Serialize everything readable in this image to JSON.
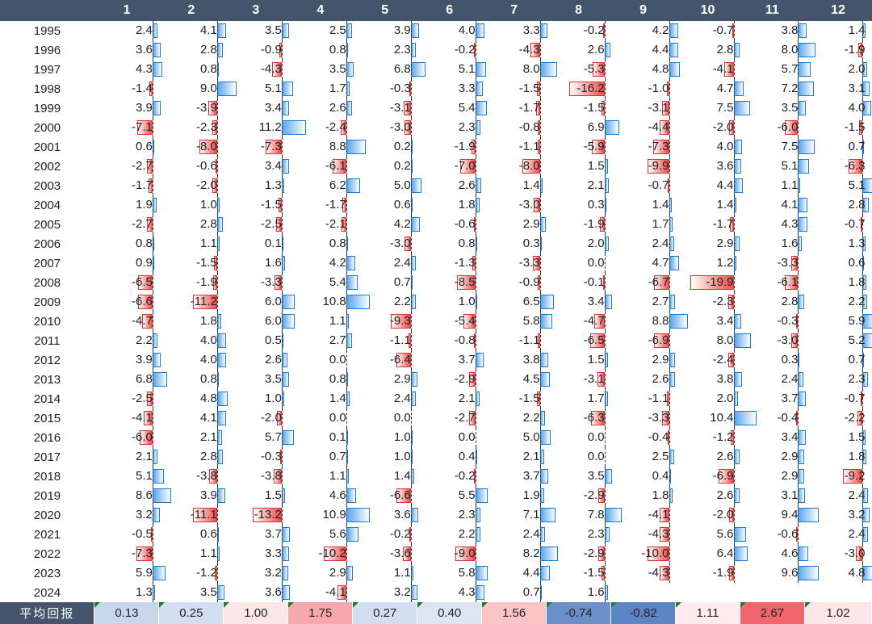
{
  "header": {
    "year_col_label": "",
    "months": [
      "1",
      "2",
      "3",
      "4",
      "5",
      "6",
      "7",
      "8",
      "9",
      "10",
      "11",
      "12"
    ]
  },
  "colors": {
    "header_bg": "#44546a",
    "positive_bar": "#5aa6ee",
    "negative_bar": "#f04a4a"
  },
  "rows": [
    {
      "year": "1995",
      "values": [
        "2.4",
        "4.1",
        "3.5",
        "2.5",
        "3.9",
        "4.0",
        "3.3",
        "-0.2",
        "4.2",
        "-0.7",
        "3.8",
        "1.4"
      ]
    },
    {
      "year": "1996",
      "values": [
        "3.6",
        "2.8",
        "-0.9",
        "0.8",
        "2.3",
        "-0.2",
        "-4.3",
        "2.6",
        "4.4",
        "2.8",
        "8.0",
        "-1.9"
      ]
    },
    {
      "year": "1997",
      "values": [
        "4.3",
        "0.8",
        "-4.3",
        "3.5",
        "6.8",
        "5.1",
        "8.0",
        "-5.3",
        "4.8",
        "-4.1",
        "5.7",
        "2.0"
      ]
    },
    {
      "year": "1998",
      "values": [
        "-1.4",
        "9.0",
        "5.1",
        "1.7",
        "-0.3",
        "3.3",
        "-1.5",
        "-16.2",
        "-1.0",
        "4.7",
        "7.2",
        "3.1"
      ]
    },
    {
      "year": "1999",
      "values": [
        "3.9",
        "-3.9",
        "3.4",
        "2.6",
        "-3.1",
        "5.4",
        "-1.7",
        "-1.5",
        "-3.1",
        "7.5",
        "3.5",
        "4.0"
      ]
    },
    {
      "year": "2000",
      "values": [
        "-7.1",
        "-2.3",
        "11.2",
        "-2.4",
        "-3.0",
        "2.3",
        "-0.8",
        "6.9",
        "-4.4",
        "-2.0",
        "-6.0",
        "-1.5"
      ]
    },
    {
      "year": "2001",
      "values": [
        "0.6",
        "-8.0",
        "-7.3",
        "8.8",
        "0.2",
        "-1.9",
        "-1.1",
        "-5.9",
        "-7.3",
        "4.0",
        "7.5",
        "0.7"
      ]
    },
    {
      "year": "2002",
      "values": [
        "-2.7",
        "-0.6",
        "3.4",
        "-6.1",
        "0.2",
        "-7.0",
        "-8.0",
        "1.5",
        "-9.9",
        "3.6",
        "5.1",
        "-6.3"
      ]
    },
    {
      "year": "2003",
      "values": [
        "-1.7",
        "-2.0",
        "1.3",
        "6.2",
        "5.0",
        "2.6",
        "1.4",
        "2.1",
        "-0.7",
        "4.4",
        "1.1",
        "5.1"
      ]
    },
    {
      "year": "2004",
      "values": [
        "1.9",
        "1.0",
        "-1.5",
        "-1.7",
        "0.6",
        "1.8",
        "-3.0",
        "0.3",
        "1.4",
        "1.4",
        "4.1",
        "2.8"
      ]
    },
    {
      "year": "2005",
      "values": [
        "-2.7",
        "2.8",
        "-2.5",
        "-2.1",
        "4.2",
        "-0.6",
        "2.9",
        "-1.9",
        "1.7",
        "-1.7",
        "4.3",
        "-0.7"
      ]
    },
    {
      "year": "2006",
      "values": [
        "0.8",
        "1.1",
        "0.1",
        "0.8",
        "-3.0",
        "0.8",
        "0.3",
        "2.0",
        "2.4",
        "2.9",
        "1.6",
        "1.3"
      ]
    },
    {
      "year": "2007",
      "values": [
        "0.9",
        "-1.5",
        "1.6",
        "4.2",
        "2.4",
        "-1.3",
        "-3.3",
        "0.0",
        "4.7",
        "1.2",
        "-3.3",
        "0.6"
      ]
    },
    {
      "year": "2008",
      "values": [
        "-6.5",
        "-1.9",
        "-3.3",
        "5.4",
        "0.7",
        "-8.5",
        "-0.9",
        "-0.1",
        "-6.7",
        "-19.9",
        "-6.1",
        "1.8"
      ]
    },
    {
      "year": "2009",
      "values": [
        "-6.6",
        "-11.2",
        "6.0",
        "10.8",
        "2.2",
        "1.0",
        "6.5",
        "3.4",
        "2.7",
        "-2.3",
        "2.8",
        "2.2"
      ]
    },
    {
      "year": "2010",
      "values": [
        "-4.7",
        "1.8",
        "6.0",
        "1.1",
        "-9.3",
        "-5.4",
        "5.8",
        "-4.7",
        "8.8",
        "3.4",
        "-0.3",
        "5.9"
      ]
    },
    {
      "year": "2011",
      "values": [
        "2.2",
        "4.0",
        "0.5",
        "2.7",
        "-1.1",
        "-0.8",
        "-1.1",
        "-6.5",
        "-6.9",
        "8.0",
        "-3.0",
        "5.2"
      ]
    },
    {
      "year": "2012",
      "values": [
        "3.9",
        "4.0",
        "2.6",
        "0.0",
        "-6.4",
        "3.7",
        "3.8",
        "1.5",
        "2.9",
        "-2.4",
        "0.3",
        "0.7"
      ]
    },
    {
      "year": "2013",
      "values": [
        "6.8",
        "0.8",
        "3.5",
        "0.8",
        "2.9",
        "-2.9",
        "4.5",
        "-3.1",
        "2.6",
        "3.8",
        "2.4",
        "2.3"
      ]
    },
    {
      "year": "2014",
      "values": [
        "-2.5",
        "4.8",
        "1.0",
        "1.4",
        "2.4",
        "2.1",
        "-1.5",
        "1.7",
        "-1.1",
        "2.0",
        "3.7",
        "-0.7"
      ]
    },
    {
      "year": "2015",
      "values": [
        "-4.1",
        "4.1",
        "-2.0",
        "0.0",
        "0.0",
        "-2.7",
        "2.2",
        "-6.3",
        "-3.3",
        "10.4",
        "-0.4",
        "-2.2"
      ]
    },
    {
      "year": "2016",
      "values": [
        "-6.0",
        "2.1",
        "5.7",
        "0.1",
        "1.0",
        "0.0",
        "5.0",
        "0.0",
        "-0.4",
        "-1.2",
        "3.4",
        "1.5"
      ]
    },
    {
      "year": "2017",
      "values": [
        "2.1",
        "2.8",
        "-0.3",
        "0.7",
        "1.0",
        "0.4",
        "2.1",
        "0.0",
        "2.5",
        "2.6",
        "2.9",
        "1.8"
      ]
    },
    {
      "year": "2018",
      "values": [
        "5.1",
        "-3.8",
        "-3.8",
        "1.1",
        "1.4",
        "-0.2",
        "3.7",
        "3.5",
        "0.4",
        "-6.9",
        "2.9",
        "-9.2"
      ]
    },
    {
      "year": "2019",
      "values": [
        "8.6",
        "3.9",
        "1.5",
        "4.6",
        "-6.6",
        "5.5",
        "1.9",
        "-2.9",
        "1.8",
        "2.6",
        "3.1",
        "2.4"
      ]
    },
    {
      "year": "2020",
      "values": [
        "3.2",
        "-11.1",
        "-13.2",
        "10.9",
        "3.6",
        "2.3",
        "7.1",
        "7.8",
        "-4.1",
        "-2.0",
        "9.4",
        "3.2"
      ]
    },
    {
      "year": "2021",
      "values": [
        "-0.5",
        "0.6",
        "3.7",
        "5.6",
        "-0.2",
        "2.2",
        "2.4",
        "2.3",
        "-4.3",
        "5.6",
        "-0.6",
        "2.4"
      ]
    },
    {
      "year": "2022",
      "values": [
        "-7.3",
        "1.1",
        "3.3",
        "-10.2",
        "-3.6",
        "-9.0",
        "8.2",
        "-2.9",
        "-10.0",
        "6.4",
        "4.6",
        "-3.0"
      ]
    },
    {
      "year": "2023",
      "values": [
        "5.9",
        "-1.2",
        "3.2",
        "2.9",
        "1.1",
        "5.8",
        "4.4",
        "-1.5",
        "-4.3",
        "-1.9",
        "9.6",
        "4.8"
      ]
    },
    {
      "year": "2024",
      "values": [
        "1.3",
        "3.5",
        "3.6",
        "-4.1",
        "3.2",
        "4.3",
        "0.7",
        "1.6",
        "",
        "",
        "",
        ""
      ]
    }
  ],
  "average": {
    "label": "平均回报",
    "values": [
      "0.13",
      "0.25",
      "1.00",
      "1.75",
      "0.27",
      "0.40",
      "1.56",
      "-0.74",
      "-0.82",
      "1.11",
      "2.67",
      "1.02"
    ],
    "cell_colors": [
      "#c9d6ea",
      "#d3dff0",
      "#fde6e8",
      "#f7a9ad",
      "#d3dff0",
      "#dde5f3",
      "#fbc5c8",
      "#6d8fc9",
      "#5d84c4",
      "#fdebed",
      "#f0666c",
      "#fde6e8"
    ]
  }
}
